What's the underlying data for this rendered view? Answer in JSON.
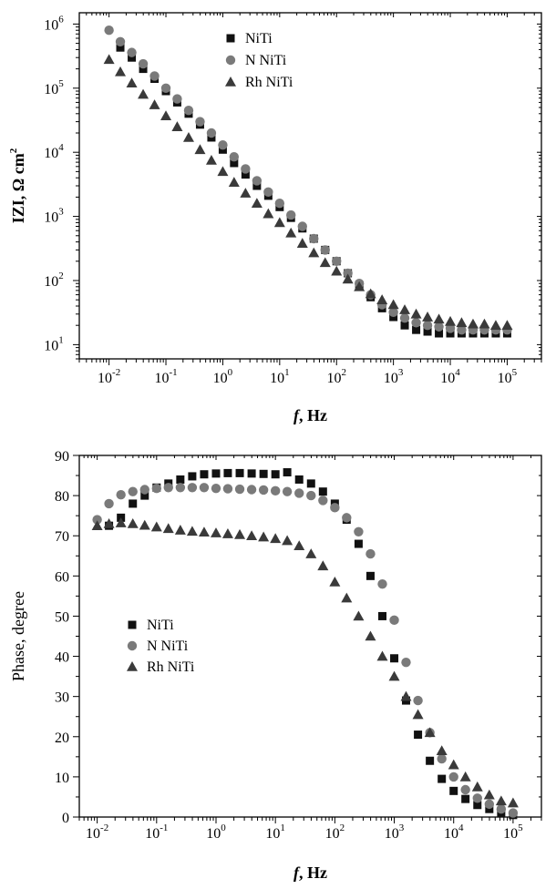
{
  "chart_data": [
    {
      "type": "scatter",
      "panel": "impedance-magnitude",
      "xscale": "log",
      "yscale": "log",
      "xlim": [
        0.003,
        400000
      ],
      "ylim": [
        6,
        1500000
      ],
      "xlabel": {
        "italic": "f",
        "rest": ", Hz"
      },
      "ylabel": {
        "main": "IZI, Ω cm",
        "sup": "2"
      },
      "x_ticks": [
        {
          "value": 0.01,
          "base": "10",
          "exp": "-2"
        },
        {
          "value": 0.1,
          "base": "10",
          "exp": "-1"
        },
        {
          "value": 1,
          "base": "10",
          "exp": "0"
        },
        {
          "value": 10,
          "base": "10",
          "exp": "1"
        },
        {
          "value": 100,
          "base": "10",
          "exp": "2"
        },
        {
          "value": 1000,
          "base": "10",
          "exp": "3"
        },
        {
          "value": 10000,
          "base": "10",
          "exp": "4"
        },
        {
          "value": 100000,
          "base": "10",
          "exp": "5"
        }
      ],
      "y_ticks": [
        {
          "value": 10,
          "base": "10",
          "exp": "1"
        },
        {
          "value": 100,
          "base": "10",
          "exp": "2"
        },
        {
          "value": 1000,
          "base": "10",
          "exp": "3"
        },
        {
          "value": 10000,
          "base": "10",
          "exp": "4"
        },
        {
          "value": 100000,
          "base": "10",
          "exp": "5"
        },
        {
          "value": 1000000,
          "base": "10",
          "exp": "6"
        }
      ],
      "legend_position": "top-center",
      "series": [
        {
          "name": "NiTi",
          "marker": "square",
          "color": "#111111",
          "x": [
            0.0158,
            0.0251,
            0.0398,
            0.0631,
            0.1,
            0.158,
            0.251,
            0.398,
            0.631,
            1,
            1.58,
            2.51,
            3.98,
            6.31,
            10,
            15.8,
            25.1,
            39.8,
            63.1,
            100,
            158,
            251,
            398,
            631,
            1000,
            1580,
            2510,
            3980,
            6310,
            10000,
            15800,
            25100,
            39800,
            63100,
            100000
          ],
          "y": [
            430000,
            300000,
            200000,
            140000,
            90000,
            60000,
            40000,
            27000,
            17000,
            11000,
            6800,
            4500,
            3000,
            2100,
            1400,
            950,
            650,
            450,
            300,
            200,
            130,
            85,
            55,
            37,
            27,
            20,
            17,
            16,
            15,
            15,
            15,
            15,
            15,
            15,
            15
          ]
        },
        {
          "name": "N NiTi",
          "marker": "circle",
          "color": "#7a7a7a",
          "x": [
            0.01,
            0.0158,
            0.0251,
            0.0398,
            0.0631,
            0.1,
            0.158,
            0.251,
            0.398,
            0.631,
            1,
            1.58,
            2.51,
            3.98,
            6.31,
            10,
            15.8,
            25.1,
            39.8,
            63.1,
            100,
            158,
            251,
            398,
            631,
            1000,
            1580,
            2510,
            3980,
            6310,
            10000,
            15800,
            25100,
            39800,
            63100,
            100000
          ],
          "y": [
            800000,
            530000,
            360000,
            240000,
            155000,
            100000,
            68000,
            45000,
            30000,
            20000,
            13000,
            8500,
            5500,
            3600,
            2400,
            1600,
            1050,
            700,
            450,
            300,
            200,
            130,
            90,
            60,
            42,
            32,
            26,
            22,
            20,
            19,
            18,
            17,
            17,
            17,
            17,
            17
          ]
        },
        {
          "name": "Rh NiTi",
          "marker": "triangle",
          "color": "#3a3a3a",
          "x": [
            0.01,
            0.0158,
            0.0251,
            0.0398,
            0.0631,
            0.1,
            0.158,
            0.251,
            0.398,
            0.631,
            1,
            1.58,
            2.51,
            3.98,
            6.31,
            10,
            15.8,
            25.1,
            39.8,
            63.1,
            100,
            158,
            251,
            398,
            631,
            1000,
            1580,
            2510,
            3980,
            6310,
            10000,
            15800,
            25100,
            39800,
            63100,
            100000
          ],
          "y": [
            280000,
            180000,
            120000,
            80000,
            55000,
            37000,
            25000,
            17000,
            11000,
            7500,
            5000,
            3400,
            2300,
            1600,
            1100,
            800,
            550,
            380,
            270,
            190,
            140,
            105,
            80,
            62,
            50,
            42,
            35,
            30,
            27,
            25,
            23,
            22,
            21,
            21,
            20,
            20
          ]
        }
      ]
    },
    {
      "type": "scatter",
      "panel": "phase",
      "xscale": "log",
      "yscale": "linear",
      "xlim": [
        0.005,
        300000
      ],
      "ylim": [
        0,
        90
      ],
      "xlabel": {
        "italic": "f",
        "rest": ", Hz"
      },
      "ylabel": {
        "main": "Phase, degree",
        "sup": ""
      },
      "x_ticks": [
        {
          "value": 0.01,
          "base": "10",
          "exp": "-2"
        },
        {
          "value": 0.1,
          "base": "10",
          "exp": "-1"
        },
        {
          "value": 1,
          "base": "10",
          "exp": "0"
        },
        {
          "value": 10,
          "base": "10",
          "exp": "1"
        },
        {
          "value": 100,
          "base": "10",
          "exp": "2"
        },
        {
          "value": 1000,
          "base": "10",
          "exp": "3"
        },
        {
          "value": 10000,
          "base": "10",
          "exp": "4"
        },
        {
          "value": 100000,
          "base": "10",
          "exp": "5"
        }
      ],
      "y_ticks": [
        0,
        10,
        20,
        30,
        40,
        50,
        60,
        70,
        80,
        90
      ],
      "legend_position": "middle-left",
      "series": [
        {
          "name": "NiTi",
          "marker": "square",
          "color": "#111111",
          "x": [
            0.0158,
            0.0251,
            0.0398,
            0.0631,
            0.1,
            0.158,
            0.251,
            0.398,
            0.631,
            1,
            1.58,
            2.51,
            3.98,
            6.31,
            10,
            15.8,
            25.1,
            39.8,
            63.1,
            100,
            158,
            251,
            398,
            631,
            1000,
            1580,
            2510,
            3980,
            6310,
            10000,
            15800,
            25100,
            39800,
            63100,
            100000
          ],
          "y": [
            72.5,
            74.5,
            78,
            80,
            82,
            83,
            84,
            84.8,
            85.3,
            85.5,
            85.6,
            85.6,
            85.5,
            85.4,
            85.3,
            85.8,
            84,
            83,
            81,
            78,
            74,
            68,
            60,
            50,
            39.5,
            29,
            20.5,
            14,
            9.5,
            6.5,
            4.5,
            3,
            2,
            1,
            0.5
          ]
        },
        {
          "name": "N NiTi",
          "marker": "circle",
          "color": "#7a7a7a",
          "x": [
            0.01,
            0.0158,
            0.0251,
            0.0398,
            0.0631,
            0.1,
            0.158,
            0.251,
            0.398,
            0.631,
            1,
            1.58,
            2.51,
            3.98,
            6.31,
            10,
            15.8,
            25.1,
            39.8,
            63.1,
            100,
            158,
            251,
            398,
            631,
            1000,
            1580,
            2510,
            3980,
            6310,
            10000,
            15800,
            25100,
            39800,
            63100,
            100000
          ],
          "y": [
            74,
            78,
            80.2,
            81,
            81.5,
            81.8,
            82,
            82,
            82,
            82,
            81.8,
            81.7,
            81.6,
            81.5,
            81.4,
            81.2,
            81,
            80.6,
            80,
            78.8,
            77,
            74.5,
            71,
            65.5,
            58,
            49,
            38.5,
            29,
            21,
            14.5,
            10,
            6.8,
            4.7,
            3.2,
            2,
            1
          ]
        },
        {
          "name": "Rh NiTi",
          "marker": "triangle",
          "color": "#3a3a3a",
          "x": [
            0.01,
            0.0158,
            0.0251,
            0.0398,
            0.0631,
            0.1,
            0.158,
            0.251,
            0.398,
            0.631,
            1,
            1.58,
            2.51,
            3.98,
            6.31,
            10,
            15.8,
            25.1,
            39.8,
            63.1,
            100,
            158,
            251,
            398,
            631,
            1000,
            1580,
            2510,
            3980,
            6310,
            10000,
            15800,
            25100,
            39800,
            63100,
            100000
          ],
          "y": [
            72.5,
            73,
            73.2,
            73,
            72.6,
            72.2,
            71.8,
            71.4,
            71.1,
            70.9,
            70.7,
            70.5,
            70.3,
            70,
            69.7,
            69.3,
            68.8,
            67.5,
            65.5,
            62.5,
            58.5,
            54.5,
            50,
            45,
            40,
            35,
            30,
            25.5,
            21,
            16.5,
            13,
            10,
            7.5,
            5.5,
            4,
            3.5
          ]
        }
      ]
    }
  ]
}
